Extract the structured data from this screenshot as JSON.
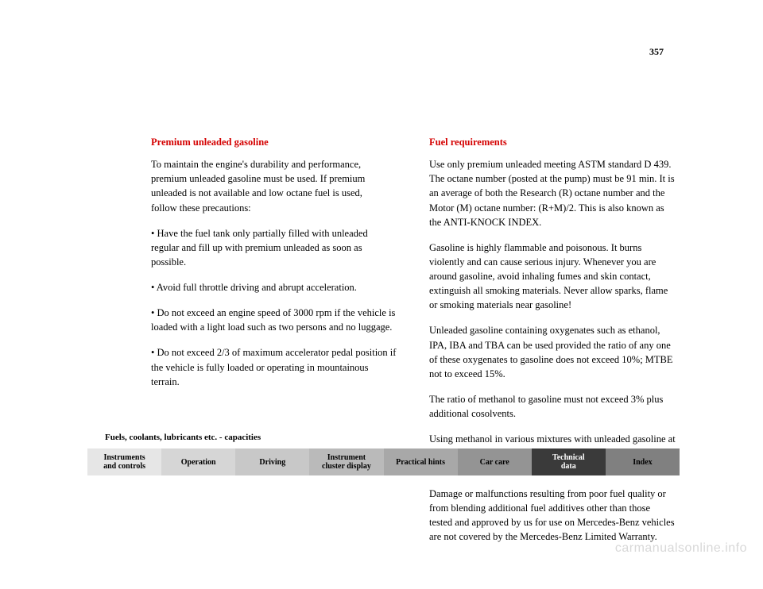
{
  "page_number": "357",
  "left_column": {
    "heading": "Premium unleaded gasoline",
    "p1_line1": "To maintain the engine's durability and performance,",
    "p1_line2": "premium unleaded gasoline must be used. If premium",
    "p1_line3": "unleaded is not available and low octane fuel is used,",
    "p1_line4": "follow these precautions:",
    "b1": "• Have the fuel tank only partially filled with unleaded regular and fill up with premium unleaded as soon as possible.",
    "b2": "• Avoid full throttle driving and abrupt acceleration.",
    "b3": "• Do not exceed an engine speed of 3000 rpm if the vehicle is loaded with a light load such as two persons and no luggage.",
    "b4": "• Do not exceed 2/3 of maximum accelerator pedal position if the vehicle is fully loaded or operating in mountainous terrain."
  },
  "right_column": {
    "heading": "Fuel requirements",
    "p1": "Use only premium unleaded meeting ASTM standard D 439. The octane number (posted at the pump) must be 91 min. It is an average of both the Research (R) octane number and the Motor (M) octane number: (R+M)/2. This is also known as the ANTI-KNOCK INDEX.",
    "p2": "Gasoline is highly flammable and poisonous. It burns violently and can cause serious injury. Whenever you are around gasoline, avoid inhaling fumes and skin contact, extinguish all smoking materials. Never allow sparks, flame or smoking materials near gasoline!",
    "p3": "Unleaded gasoline containing oxygenates such as ethanol, IPA, IBA and TBA can be used provided the ratio of any one of these oxygenates to gasoline does not exceed 10%; MTBE not to exceed 15%.",
    "p4": "The ratio of methanol to gasoline must not exceed 3% plus additional cosolvents.",
    "p5": "Using methanol in various mixtures with unleaded gasoline at your own risk. It may result in damage to engine and fuel system parts.",
    "p6": "Damage or malfunctions resulting from poor fuel quality or from blending additional fuel additives other than those tested and approved by us for use on Mercedes-Benz vehicles are not covered by the Mercedes-Benz Limited Warranty."
  },
  "section_label": "Fuels, coolants, lubricants etc. - capacities",
  "nav": {
    "items": [
      {
        "label_line1": "Instruments",
        "label_line2": "and controls",
        "bg": "#e6e6e6",
        "fg": "#000000"
      },
      {
        "label_line1": "Operation",
        "label_line2": "",
        "bg": "#d6d6d6",
        "fg": "#000000"
      },
      {
        "label_line1": "Driving",
        "label_line2": "",
        "bg": "#c8c8c8",
        "fg": "#000000"
      },
      {
        "label_line1": "Instrument",
        "label_line2": "cluster display",
        "bg": "#bababa",
        "fg": "#000000"
      },
      {
        "label_line1": "Practical hints",
        "label_line2": "",
        "bg": "#a8a8a8",
        "fg": "#000000"
      },
      {
        "label_line1": "Car care",
        "label_line2": "",
        "bg": "#949494",
        "fg": "#000000"
      },
      {
        "label_line1": "Technical",
        "label_line2": "data",
        "bg": "#3a3a3a",
        "fg": "#ffffff"
      },
      {
        "label_line1": "Index",
        "label_line2": "",
        "bg": "#808080",
        "fg": "#000000"
      }
    ]
  },
  "watermark": "carmanualsonline.info"
}
